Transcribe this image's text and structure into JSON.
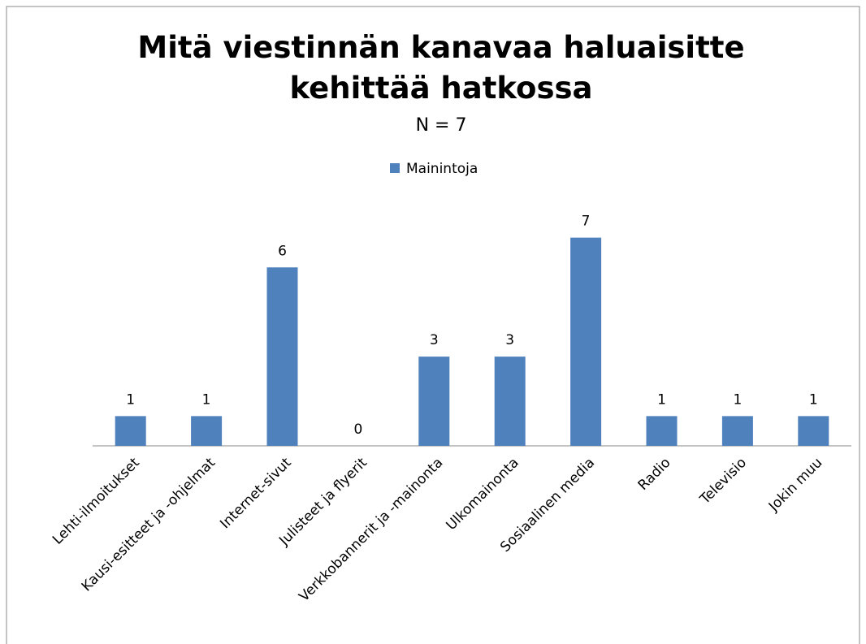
{
  "chart_data": {
    "type": "bar",
    "title": "Mitä viestinnän kanavaa haluaisitte kehittää hatkossa",
    "subtitle": "N = 7",
    "categories": [
      "Lehti-ilmoitukset",
      "Kausi-esitteet ja -ohjelmat",
      "Internet-sivut",
      "Julisteet ja flyerit",
      "Verkkobannerit ja -mainonta",
      "Ulkomainonta",
      "Sosiaalinen media",
      "Radio",
      "Televisio",
      "Jokin muu"
    ],
    "series": [
      {
        "name": "Mainintoja",
        "color": "#4f81bd",
        "values": [
          1,
          1,
          6,
          0,
          3,
          3,
          7,
          1,
          1,
          1
        ]
      }
    ],
    "ylim": [
      0,
      8
    ],
    "legend": "top"
  }
}
